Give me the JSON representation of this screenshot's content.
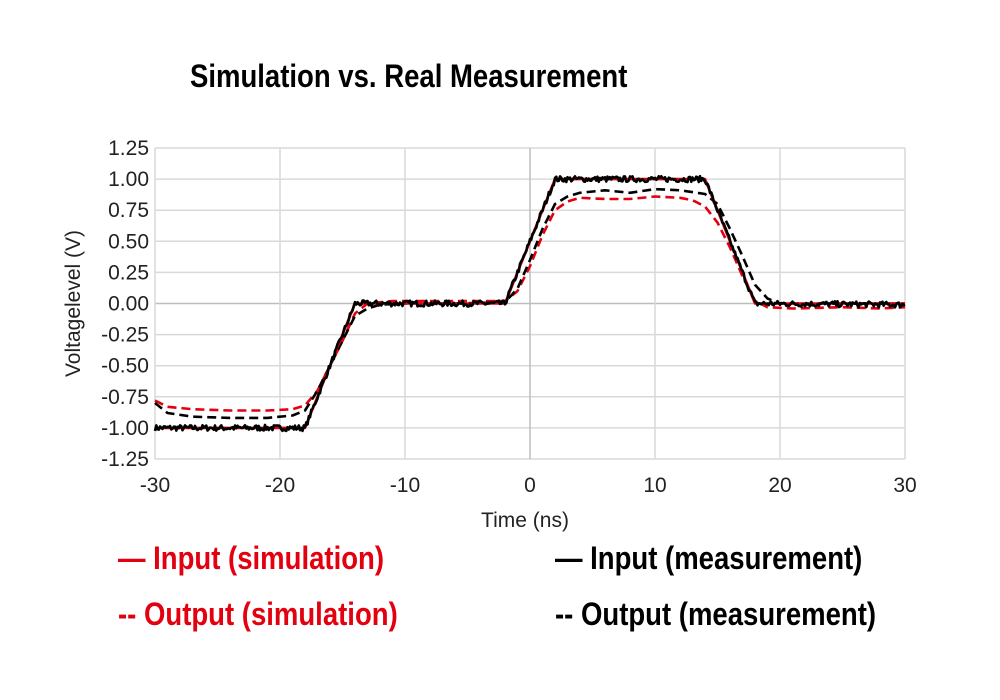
{
  "chart_data": {
    "type": "line",
    "title": "Simulation vs. Real Measurement",
    "xlabel": "Time (ns)",
    "ylabel": "Voltagelevel (V)",
    "xlim": [
      -30,
      30
    ],
    "ylim": [
      -1.25,
      1.25
    ],
    "xticks": [
      "-30",
      "-20",
      "-10",
      "0",
      "10",
      "20",
      "30"
    ],
    "yticks": [
      "1.25",
      "1.00",
      "0.75",
      "0.50",
      "0.25",
      "0.00",
      "-0.25",
      "-0.50",
      "-0.75",
      "-1.00",
      "-1.25"
    ],
    "grid": true,
    "legend_position": "bottom",
    "series": [
      {
        "name": "Input (simulation)",
        "legend_label": "— Input (simulation)",
        "color": "#e3000f",
        "style": "solid",
        "x": [
          -30,
          -18,
          -14,
          -2,
          2,
          14,
          18,
          30
        ],
        "y": [
          -1,
          -1,
          0,
          0,
          1,
          1,
          0,
          0
        ]
      },
      {
        "name": "Output (simulation)",
        "legend_label": "-- Output (simulation)",
        "color": "#e3000f",
        "style": "dashed",
        "x": [
          -30,
          -29,
          -27,
          -24,
          -21,
          -19,
          -18,
          -17,
          -15,
          -14,
          -13,
          -11,
          -8,
          -5,
          -2,
          -1,
          0,
          1,
          2,
          3,
          4,
          6,
          8,
          10,
          12,
          13,
          14,
          15,
          16,
          17,
          18,
          19,
          21,
          25,
          28,
          30
        ],
        "y": [
          -0.78,
          -0.83,
          -0.85,
          -0.86,
          -0.86,
          -0.85,
          -0.82,
          -0.7,
          -0.3,
          -0.08,
          0.0,
          0.02,
          0.02,
          0.02,
          0.02,
          0.1,
          0.3,
          0.55,
          0.75,
          0.82,
          0.85,
          0.84,
          0.84,
          0.86,
          0.85,
          0.83,
          0.78,
          0.65,
          0.45,
          0.22,
          0.02,
          -0.03,
          -0.04,
          -0.03,
          -0.04,
          -0.03
        ]
      },
      {
        "name": "Input (measurement)",
        "legend_label": "— Input (measurement)",
        "color": "#000000",
        "style": "solid",
        "noise": 0.015,
        "x": [
          -30,
          -18,
          -14,
          -2,
          2,
          14,
          18,
          30
        ],
        "y": [
          -1,
          -1,
          0,
          0,
          1,
          1,
          0,
          -0.01
        ]
      },
      {
        "name": "Output (measurement)",
        "legend_label": "-- Output (measurement)",
        "color": "#000000",
        "style": "dashed",
        "x": [
          -30,
          -29,
          -27,
          -24,
          -21,
          -19,
          -18,
          -17,
          -15,
          -14,
          -13,
          -12,
          -10,
          -6,
          -2,
          -1,
          0,
          1,
          2,
          3,
          4,
          6,
          8,
          10,
          12,
          14,
          15,
          16,
          17,
          18,
          19,
          20,
          25,
          30
        ],
        "y": [
          -0.8,
          -0.88,
          -0.91,
          -0.92,
          -0.92,
          -0.9,
          -0.86,
          -0.7,
          -0.3,
          -0.1,
          -0.04,
          -0.01,
          0.0,
          0.0,
          0.01,
          0.12,
          0.35,
          0.6,
          0.8,
          0.86,
          0.89,
          0.91,
          0.89,
          0.92,
          0.91,
          0.88,
          0.8,
          0.6,
          0.38,
          0.15,
          0.04,
          0.0,
          0.0,
          0.0
        ]
      }
    ]
  }
}
